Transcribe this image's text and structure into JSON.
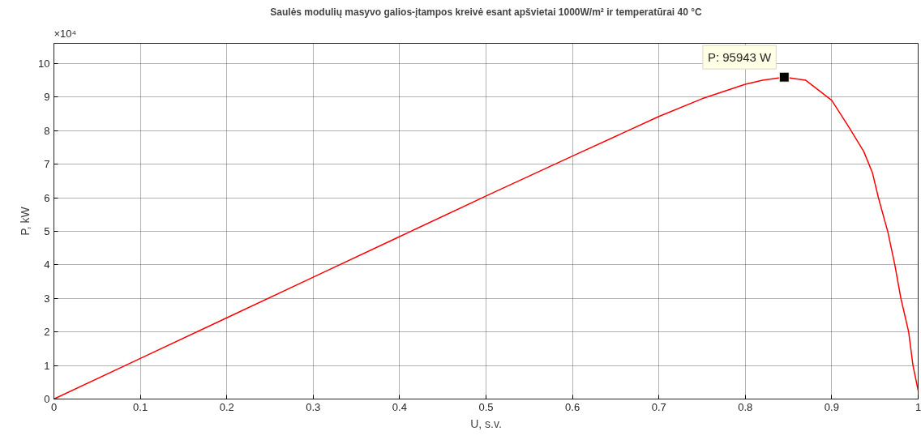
{
  "chart_data": {
    "type": "line",
    "title": "Saulės modulių masyvo galios-įtampos kreivė esant apšvietai 1000W/m² ir temperatūrai 40 °C",
    "xlabel": "U, s.v.",
    "ylabel": "P, kW",
    "annotations": [
      "×10⁴",
      {
        "text": "P: 95943 W",
        "x": 0.845,
        "y": 9.5943
      }
    ],
    "x": [
      0,
      0.1,
      0.2,
      0.3,
      0.4,
      0.5,
      0.6,
      0.7,
      0.75,
      0.8,
      0.82,
      0.845,
      0.87,
      0.9,
      0.92,
      0.937,
      0.947,
      0.954,
      0.965,
      0.973,
      0.98,
      0.989,
      0.994,
      1.0
    ],
    "series": [
      {
        "color": "#ff0000",
        "values": [
          0,
          1.21,
          2.42,
          3.63,
          4.84,
          6.05,
          7.24,
          8.42,
          8.95,
          9.38,
          9.5,
          9.59,
          9.5,
          8.9,
          8.1,
          7.38,
          6.75,
          6.0,
          4.97,
          4.0,
          3.0,
          2.0,
          1.0,
          0.25
        ]
      }
    ],
    "xlim": [
      0,
      1
    ],
    "ylim": [
      0,
      10.6
    ],
    "xticks": [
      0,
      0.1,
      0.2,
      0.3,
      0.4,
      0.5,
      0.6,
      0.7,
      0.8,
      0.9,
      1
    ],
    "yticks": [
      0,
      1,
      2,
      3,
      4,
      5,
      6,
      7,
      8,
      9,
      10
    ],
    "grid": true,
    "marker": "none",
    "line_style": "solid"
  }
}
